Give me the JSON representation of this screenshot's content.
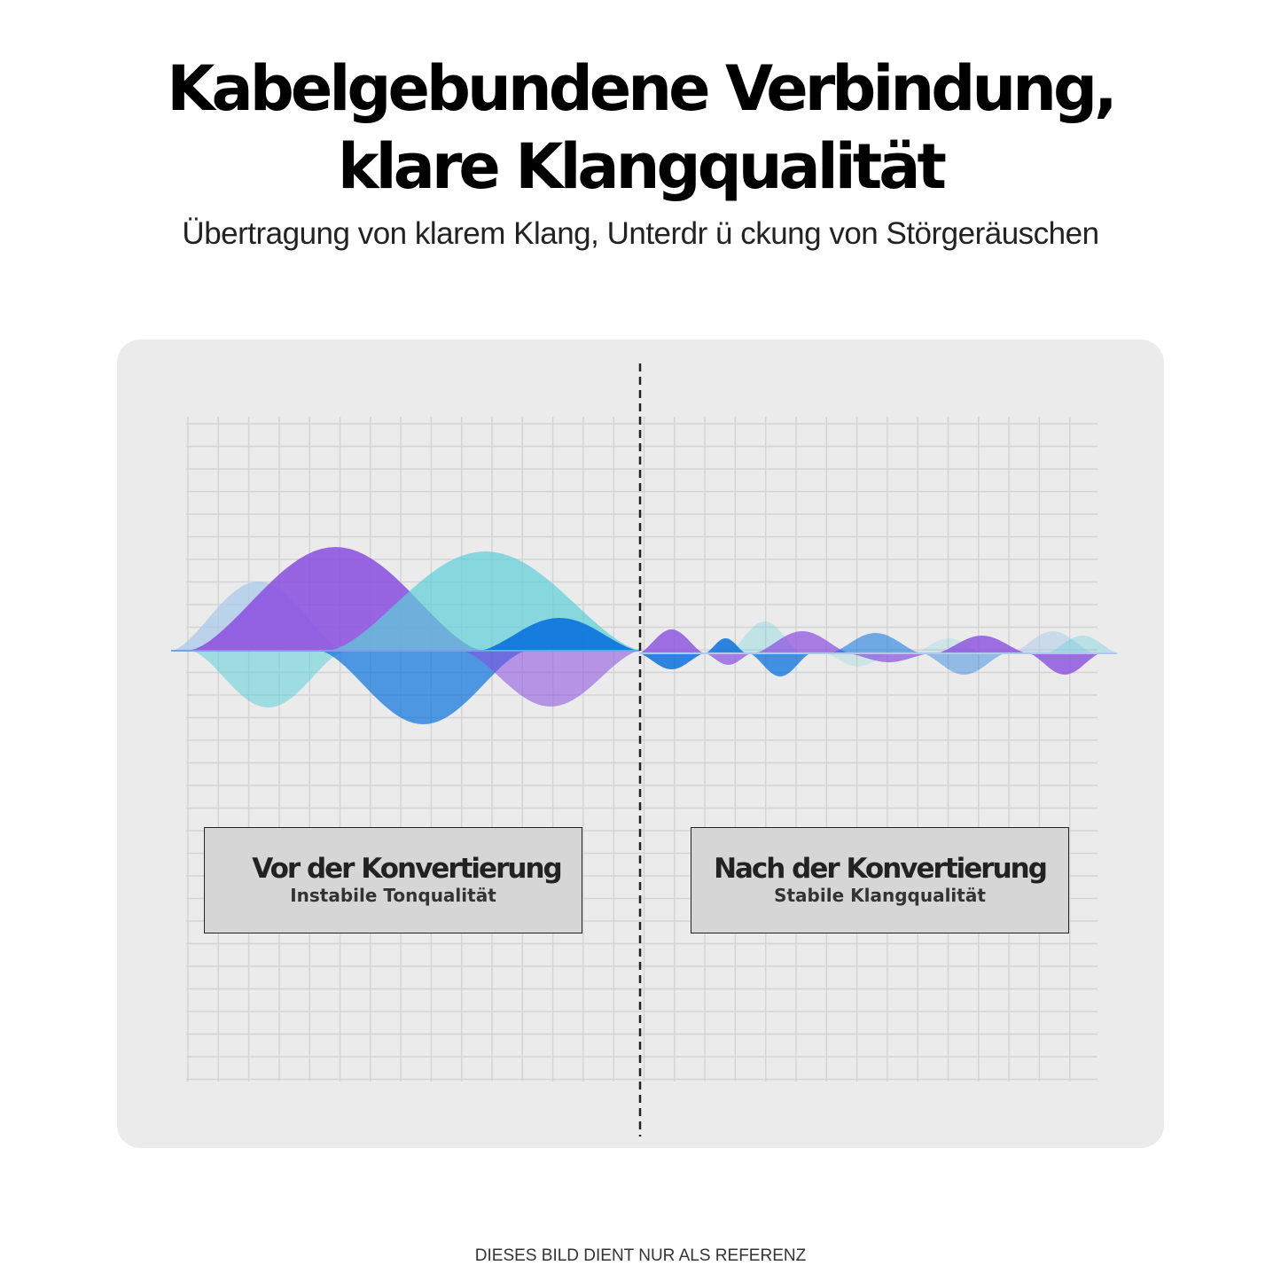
{
  "header": {
    "title_line1": "Kabelgebundene Verbindung,",
    "title_line2": "klare Klangqualität",
    "subtitle": "Übertragung von klarem Klang, Unterdr ü ckung von Störgeräuschen"
  },
  "panels": [
    {
      "title": "Vor der Konvertierung",
      "subtitle": "Instabile Tonqualität"
    },
    {
      "title": "Nach der Konvertierung",
      "subtitle": "Stabile Klangqualität"
    }
  ],
  "footer": "DIESES BILD DIENT NUR ALS REFERENZ",
  "colors": {
    "purple": "#8a4de0",
    "teal": "#5ccfd9",
    "blue": "#0a72dd",
    "lightblue": "#a9c9ea",
    "panel": "#ebebeb"
  }
}
